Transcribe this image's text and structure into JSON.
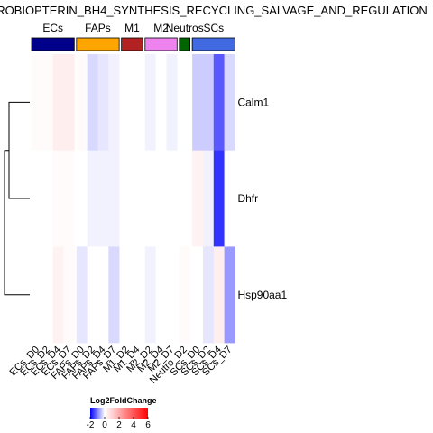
{
  "chart_data": {
    "type": "heatmap",
    "title": "ROBIOPTERIN_BH4_SYNTHESIS_RECYCLING_SALVAGE_AND_REGULATION",
    "rows": [
      "Calm1",
      "Dhfr",
      "Hsp90aa1"
    ],
    "columns": [
      "ECs_D0",
      "ECs_D2",
      "ECs_D4",
      "ECs_D7",
      "FAPs_D0",
      "FAPs_D2",
      "FAPs_D4",
      "FAPs_D7",
      "M1_D2",
      "M1_D4",
      "M2_D2",
      "M2_D4",
      "M2_D7",
      "Neutro_D2",
      "SCs_D0",
      "SCs_D2",
      "SCs_D4",
      "SCs_D7"
    ],
    "values": [
      [
        0.1,
        0.1,
        0.4,
        0.4,
        0.1,
        -0.3,
        -0.2,
        -0.1,
        0.0,
        0.0,
        -0.1,
        0.0,
        -0.1,
        0.0,
        -0.4,
        -0.4,
        -1.3,
        -0.3
      ],
      [
        0.0,
        0.0,
        0.1,
        0.1,
        0.0,
        -0.1,
        -0.1,
        -0.1,
        0.0,
        0.0,
        0.0,
        0.0,
        0.0,
        0.0,
        0.3,
        -0.1,
        -1.6,
        0.0
      ],
      [
        0.0,
        0.0,
        0.3,
        0.1,
        -0.2,
        0.0,
        0.0,
        -0.3,
        0.0,
        0.0,
        -0.1,
        0.0,
        0.0,
        0.1,
        0.0,
        -0.2,
        0.4,
        -0.8
      ]
    ],
    "groups": [
      {
        "name": "ECs",
        "color": "#00008b",
        "count": 4
      },
      {
        "name": "FAPs",
        "color": "#ffa500",
        "count": 4
      },
      {
        "name": "M1",
        "color": "#b22222",
        "count": 2
      },
      {
        "name": "M2",
        "color": "#ee82ee",
        "count": 3
      },
      {
        "name": "Neutros",
        "color": "#006400",
        "count": 1
      },
      {
        "name": "SCs",
        "color": "#4169e1",
        "count": 4
      }
    ],
    "row_dendrogram": true,
    "legend": {
      "title": "Log2FoldChange",
      "ticks": [
        -2,
        0,
        2,
        4,
        6
      ],
      "range": [
        -2,
        6
      ],
      "colors": {
        "low": "#0000ff",
        "mid": "#ffffff",
        "high": "#ff0000"
      }
    }
  }
}
